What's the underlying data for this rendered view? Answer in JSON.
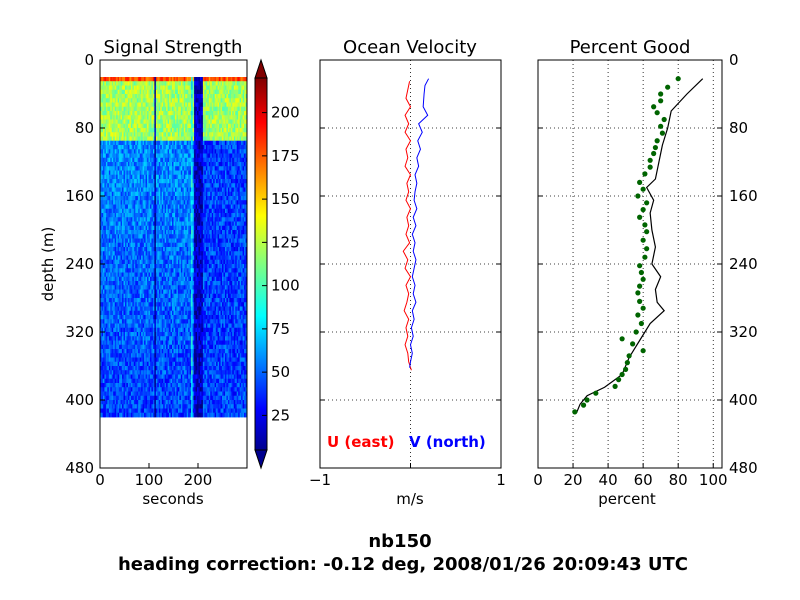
{
  "figure": {
    "suptitle_line1": "nb150",
    "suptitle_line2": "heading correction: -0.12 deg, 2008/01/26 20:09:43 UTC"
  },
  "colors": {
    "u_series": "#ff0000",
    "v_series": "#0000ff",
    "percent_points": "#006400",
    "percent_line": "#000000"
  },
  "chart_data": [
    {
      "type": "heatmap",
      "title": "Signal Strength",
      "xlabel": "seconds",
      "ylabel": "depth (m)",
      "xlim": [
        0,
        300
      ],
      "ylim": [
        480,
        0
      ],
      "xticks": [
        "0",
        "100",
        "200"
      ],
      "yticks": [
        "0",
        "80",
        "160",
        "240",
        "320",
        "400",
        "480"
      ],
      "data_depth_range": [
        20,
        420
      ],
      "colormap": "jet",
      "colorbar": {
        "ticks": [
          "25",
          "50",
          "75",
          "100",
          "125",
          "150",
          "175",
          "200"
        ],
        "range": [
          5,
          220
        ],
        "extend": "both"
      },
      "features": [
        {
          "time_range": [
            0,
            300
          ],
          "depth_range": [
            20,
            25
          ],
          "value": 175
        },
        {
          "time_range": [
            0,
            300
          ],
          "depth_range": [
            25,
            95
          ],
          "value": 120
        },
        {
          "time_range": [
            110,
            113
          ],
          "depth_range": [
            20,
            420
          ],
          "value": 10
        },
        {
          "time_range": [
            185,
            190
          ],
          "depth_range": [
            20,
            420
          ],
          "value": 85
        },
        {
          "time_range": [
            192,
            210
          ],
          "depth_range": [
            20,
            420
          ],
          "value": 20
        },
        {
          "time_range": [
            210,
            300
          ],
          "depth_range": [
            95,
            420
          ],
          "value": 45
        }
      ]
    },
    {
      "type": "line",
      "title": "Ocean Velocity",
      "xlabel": "m/s",
      "xlim": [
        -1,
        1
      ],
      "ylim": [
        480,
        0
      ],
      "xticks": [
        "−1",
        "1"
      ],
      "legend": [
        "U (east)",
        "V (north)"
      ],
      "legend_placement": "bottom",
      "grid": true,
      "series": [
        {
          "name": "U (east)",
          "depth": [
            25,
            45,
            55,
            65,
            75,
            85,
            95,
            105,
            115,
            125,
            135,
            145,
            155,
            165,
            175,
            185,
            195,
            205,
            215,
            225,
            235,
            245,
            255,
            265,
            275,
            285,
            295,
            305,
            315,
            325,
            335,
            345,
            355,
            365
          ],
          "values": [
            -0.01,
            -0.05,
            0.0,
            -0.06,
            -0.02,
            -0.06,
            0.0,
            -0.05,
            -0.03,
            -0.06,
            0.0,
            -0.04,
            -0.02,
            -0.05,
            0.0,
            -0.04,
            -0.02,
            -0.05,
            -0.01,
            -0.08,
            -0.03,
            -0.06,
            0.0,
            -0.05,
            -0.02,
            -0.04,
            -0.07,
            -0.02,
            -0.05,
            -0.03,
            -0.06,
            -0.03,
            -0.02,
            0.01
          ]
        },
        {
          "name": "V (north)",
          "depth": [
            22,
            30,
            40,
            55,
            65,
            75,
            85,
            95,
            105,
            115,
            125,
            135,
            145,
            155,
            165,
            175,
            185,
            195,
            205,
            215,
            225,
            235,
            245,
            255,
            265,
            275,
            285,
            295,
            305,
            315,
            325,
            335,
            345,
            355,
            362
          ],
          "values": [
            0.2,
            0.16,
            0.15,
            0.14,
            0.19,
            0.09,
            0.13,
            0.08,
            0.11,
            0.07,
            0.09,
            0.05,
            0.07,
            0.05,
            0.04,
            0.07,
            0.03,
            0.06,
            0.02,
            0.05,
            0.03,
            0.06,
            0.04,
            0.02,
            0.05,
            0.03,
            0.06,
            0.02,
            0.04,
            0.01,
            0.03,
            0.0,
            0.02,
            0.0,
            -0.01
          ]
        }
      ]
    },
    {
      "type": "scatter",
      "title": "Percent Good",
      "xlabel": "percent",
      "xlim": [
        0,
        105
      ],
      "ylim": [
        480,
        0
      ],
      "xticks": [
        "0",
        "20",
        "40",
        "60",
        "80",
        "100"
      ],
      "yticks": [
        "0",
        "80",
        "160",
        "240",
        "320",
        "400",
        "480"
      ],
      "grid": true,
      "series": [
        {
          "name": "",
          "style": "line",
          "depth": [
            22,
            40,
            60,
            80,
            100,
            120,
            140,
            150,
            165,
            180,
            200,
            220,
            240,
            255,
            270,
            285,
            295,
            310,
            330,
            350,
            370,
            385,
            395,
            405,
            415
          ],
          "values": [
            94,
            85,
            76,
            74,
            71,
            69,
            67,
            62,
            66,
            64,
            65,
            67,
            65,
            70,
            67,
            68,
            72,
            64,
            58,
            52,
            48,
            38,
            28,
            24,
            22
          ]
        },
        {
          "name": "",
          "style": "points",
          "depth": [
            22,
            32,
            40,
            48,
            55,
            62,
            70,
            78,
            86,
            95,
            103,
            110,
            118,
            126,
            134,
            144,
            152,
            160,
            168,
            176,
            185,
            194,
            202,
            212,
            222,
            232,
            242,
            250,
            258,
            266,
            274,
            284,
            292,
            300,
            310,
            320,
            328,
            334,
            342,
            348,
            356,
            364,
            370,
            376,
            384,
            392,
            400,
            406,
            414
          ],
          "values": [
            80,
            74,
            70,
            70,
            66,
            68,
            72,
            70,
            71,
            68,
            67,
            66,
            64,
            64,
            61,
            58,
            60,
            57,
            62,
            60,
            58,
            61,
            62,
            60,
            62,
            61,
            58,
            59,
            60,
            58,
            57,
            58,
            60,
            57,
            59,
            56,
            48,
            54,
            60,
            52,
            51,
            50,
            48,
            46,
            44,
            33,
            28,
            26,
            21
          ]
        }
      ]
    }
  ]
}
